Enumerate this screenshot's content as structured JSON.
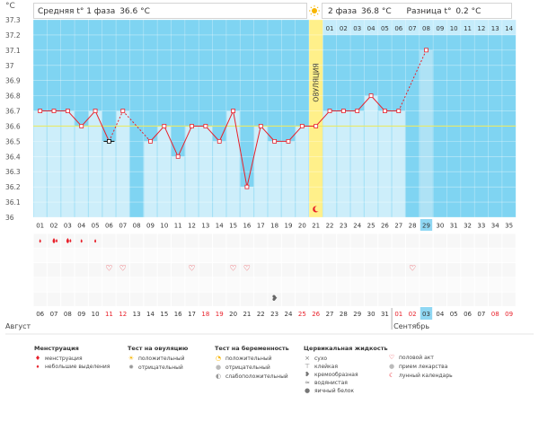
{
  "header": {
    "unit_label": "°C",
    "phase1_label": "Средняя t° 1 фаза",
    "phase1_value": "36.6 °C",
    "sun_icon": "sun-icon",
    "phase2_label": "2 фаза",
    "phase2_value": "36.8 °C",
    "diff_label": "Разница t°",
    "diff_value": "0.2 °C"
  },
  "chart_data": {
    "type": "line",
    "y_ticks": [
      "37.3",
      "37.2",
      "37.1",
      "37",
      "36.9",
      "36.8",
      "36.7",
      "36.6",
      "36.5",
      "36.4",
      "36.3",
      "36.2",
      "36.1",
      "36"
    ],
    "ylim": [
      36,
      37.3
    ],
    "cycle_days": [
      "01",
      "02",
      "03",
      "04",
      "05",
      "06",
      "07",
      "08",
      "09",
      "10",
      "11",
      "12",
      "13",
      "14",
      "15",
      "16",
      "17",
      "18",
      "19",
      "20",
      "21",
      "22",
      "23",
      "24",
      "25",
      "26",
      "27",
      "28",
      "29",
      "30",
      "31",
      "32",
      "33",
      "34",
      "35"
    ],
    "phase2_days": [
      "01",
      "02",
      "03",
      "04",
      "05",
      "06",
      "07",
      "08",
      "09",
      "10",
      "11",
      "12",
      "13",
      "14"
    ],
    "ovulation_day": 21,
    "ovulation_label": "ОВУЛЯЦИЯ",
    "coverline": 36.6,
    "values": [
      36.7,
      36.7,
      36.7,
      36.6,
      36.7,
      36.5,
      36.7,
      null,
      36.5,
      36.6,
      36.4,
      36.6,
      36.6,
      36.5,
      36.7,
      36.2,
      36.6,
      36.5,
      36.5,
      36.6,
      36.6,
      36.7,
      36.7,
      36.7,
      36.8,
      36.7,
      36.7,
      null,
      37.1,
      null,
      null,
      null,
      null,
      null,
      null
    ],
    "excluded_days": [
      6
    ],
    "current_day": 29,
    "colors": {
      "line": "#e8202a",
      "dashed": "#e8202a",
      "bar": "#cdeefa",
      "bar_dark": "#aee2f5",
      "background": "#7fd4f2",
      "ovulation": "#fff08a",
      "coverline": "#e7e96a"
    }
  },
  "calendar": {
    "month1": "Август",
    "month2": "Сентябрь",
    "dates": [
      "06",
      "07",
      "08",
      "09",
      "10",
      "11",
      "12",
      "13",
      "14",
      "15",
      "16",
      "17",
      "18",
      "19",
      "20",
      "21",
      "22",
      "23",
      "24",
      "25",
      "26",
      "27",
      "28",
      "29",
      "30",
      "31",
      "01",
      "02",
      "03",
      "04",
      "05",
      "06",
      "07",
      "08",
      "09"
    ],
    "weekend_idx": [
      5,
      6,
      12,
      13,
      19,
      20,
      26,
      27,
      33,
      34
    ],
    "today_idx": 28
  },
  "markers": {
    "menstruation_heavy": [
      2,
      3
    ],
    "menstruation_light": [
      1,
      4,
      5
    ],
    "intercourse": [
      6,
      7,
      12,
      15,
      16,
      28
    ],
    "lunar_day": 21,
    "fluid_day": 18
  },
  "legend": {
    "menstruation": {
      "title": "Менструация",
      "items": [
        "менструация",
        "небольшие выделения"
      ]
    },
    "ovulation_test": {
      "title": "Тест на овуляцию",
      "items": [
        "положительный",
        "отрицательный"
      ]
    },
    "pregnancy_test": {
      "title": "Тест на беременность",
      "items": [
        "положительный",
        "отрицательный",
        "слабоположительный"
      ]
    },
    "cervical_fluid": {
      "title": "Цервикальная жидкость",
      "items": [
        "сухо",
        "клейкая",
        "кремообразная",
        "водянистая",
        "яичный белок"
      ]
    },
    "other": {
      "items": [
        "половой акт",
        "прием лекарства",
        "лунный календарь"
      ]
    }
  }
}
